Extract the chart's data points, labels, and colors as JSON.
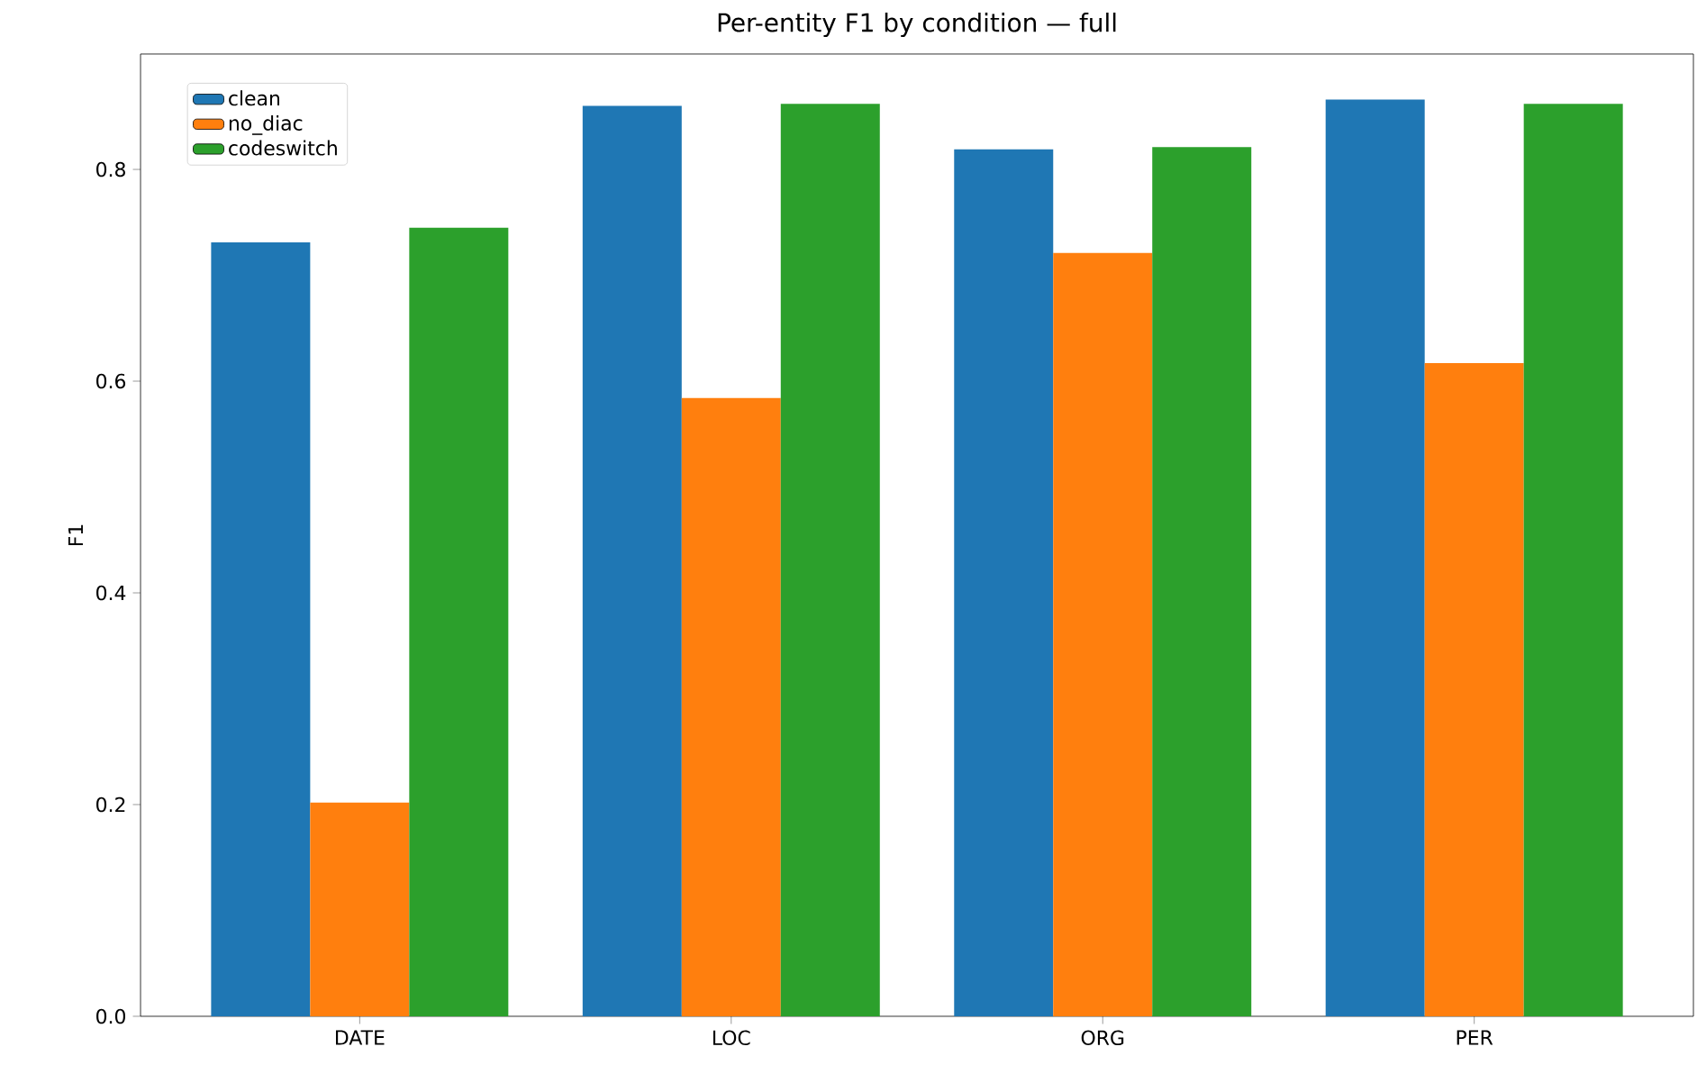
{
  "chart_data": {
    "type": "bar",
    "title": "Per-entity F1 by condition — full",
    "ylabel": "F1",
    "categories": [
      "DATE",
      "LOC",
      "ORG",
      "PER"
    ],
    "series": [
      {
        "name": "clean",
        "color": "#1f77b4",
        "values": [
          0.731,
          0.86,
          0.819,
          0.866
        ]
      },
      {
        "name": "no_diac",
        "color": "#ff7f0e",
        "values": [
          0.202,
          0.584,
          0.721,
          0.617
        ]
      },
      {
        "name": "codeswitch",
        "color": "#2ca02c",
        "values": [
          0.745,
          0.862,
          0.821,
          0.862
        ]
      }
    ],
    "ylim": [
      0,
      0.909
    ],
    "yticks": [
      {
        "value": 0,
        "label": "0.0"
      },
      {
        "value": 0.2,
        "label": "0.2"
      },
      {
        "value": 0.4,
        "label": "0.4"
      },
      {
        "value": 0.6,
        "label": "0.6"
      },
      {
        "value": 0.8,
        "label": "0.8"
      }
    ],
    "legend": "top left",
    "grid": false
  }
}
